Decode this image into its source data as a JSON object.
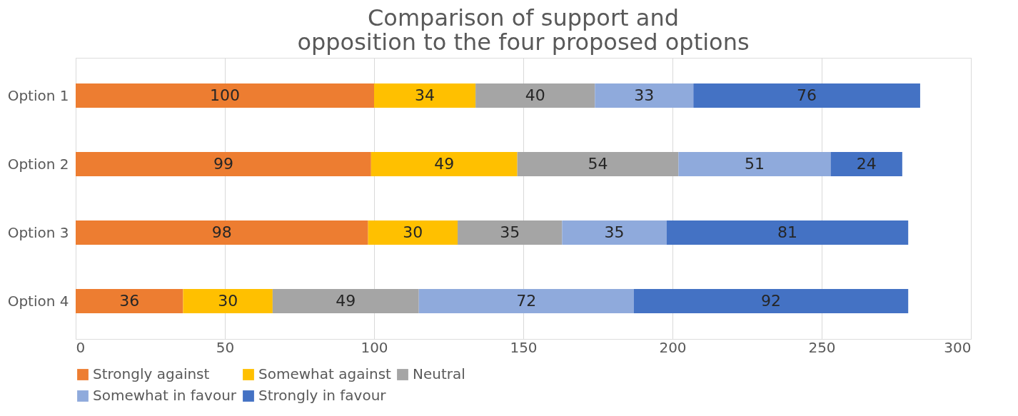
{
  "chart_data": {
    "type": "bar",
    "orientation": "horizontal",
    "stacked": true,
    "title": "Comparison of support and opposition to the four proposed options",
    "categories": [
      "Option 1",
      "Option 2",
      "Option 3",
      "Option 4"
    ],
    "series": [
      {
        "name": "Strongly against",
        "color": "#ed7d31",
        "values": [
          100,
          99,
          98,
          36
        ]
      },
      {
        "name": "Somewhat against",
        "color": "#ffc000",
        "values": [
          34,
          49,
          30,
          30
        ]
      },
      {
        "name": "Neutral",
        "color": "#a5a5a5",
        "values": [
          40,
          54,
          35,
          49
        ]
      },
      {
        "name": "Somewhat in favour",
        "color": "#8faadc",
        "values": [
          33,
          51,
          35,
          72
        ]
      },
      {
        "name": "Strongly in favour",
        "color": "#4472c4",
        "values": [
          76,
          24,
          81,
          92
        ]
      }
    ],
    "xlim": [
      0,
      300
    ],
    "xticks": [
      0,
      50,
      100,
      150,
      200,
      250,
      300
    ],
    "grid": "x",
    "legend": "bottom",
    "data_labels": true
  }
}
